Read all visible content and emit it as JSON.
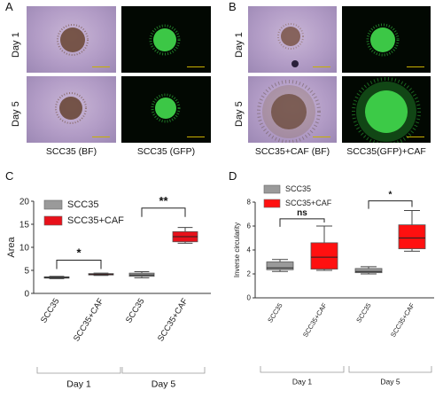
{
  "panelA": {
    "letter": "A",
    "rows": [
      "Day 1",
      "Day 5"
    ],
    "captions": [
      "SCC35 (BF)",
      "SCC35 (GFP)"
    ]
  },
  "panelB": {
    "letter": "B",
    "rows": [
      "Day 1",
      "Day 5"
    ],
    "captions": [
      "SCC35+CAF (BF)",
      "SCC35(GFP)+CAF"
    ]
  },
  "panelC": {
    "letter": "C",
    "chart_data": {
      "type": "box",
      "ylabel": "Area",
      "ylim": [
        0,
        20
      ],
      "yticks": [
        0,
        5,
        10,
        15,
        20
      ],
      "categories": [
        "SCC35",
        "SCC35+CAF",
        "SCC35",
        "SCC35+CAF"
      ],
      "groups": [
        "Day 1",
        "Day 5"
      ],
      "legend": [
        {
          "name": "SCC35",
          "color": "#9a9a9a"
        },
        {
          "name": "SCC35+CAF",
          "color": "#e8101a"
        }
      ],
      "boxes": [
        {
          "min": 3.2,
          "q1": 3.35,
          "median": 3.45,
          "q3": 3.6,
          "max": 3.7,
          "color": "#9a9a9a"
        },
        {
          "min": 3.9,
          "q1": 4.0,
          "median": 4.1,
          "q3": 4.3,
          "max": 4.4,
          "color": "#e8101a"
        },
        {
          "min": 3.4,
          "q1": 3.7,
          "median": 4.0,
          "q3": 4.4,
          "max": 4.7,
          "color": "#9a9a9a"
        },
        {
          "min": 10.9,
          "q1": 11.2,
          "median": 12.3,
          "q3": 13.4,
          "max": 14.3,
          "color": "#e8101a"
        }
      ],
      "significance": [
        {
          "from": 0,
          "to": 1,
          "label": "*",
          "y": 7.2
        },
        {
          "from": 2,
          "to": 3,
          "label": "**",
          "y": 18.5
        }
      ]
    }
  },
  "panelD": {
    "letter": "D",
    "chart_data": {
      "type": "box",
      "ylabel": "Inverse circularity",
      "ylim": [
        0,
        8
      ],
      "yticks": [
        0,
        2,
        4,
        6,
        8
      ],
      "categories": [
        "SCC35",
        "SCC35+CAF",
        "SCC35",
        "SCC35+CAF"
      ],
      "groups": [
        "Day 1",
        "Day 5"
      ],
      "legend": [
        {
          "name": "SCC35",
          "color": "#9a9a9a"
        },
        {
          "name": "SCC35+CAF",
          "color": "#ff1010"
        }
      ],
      "boxes": [
        {
          "min": 2.2,
          "q1": 2.35,
          "median": 2.5,
          "q3": 3.0,
          "max": 3.2,
          "color": "#9a9a9a"
        },
        {
          "min": 2.3,
          "q1": 2.4,
          "median": 3.4,
          "q3": 4.6,
          "max": 6.0,
          "color": "#ff1010"
        },
        {
          "min": 2.0,
          "q1": 2.1,
          "median": 2.2,
          "q3": 2.45,
          "max": 2.6,
          "color": "#9a9a9a"
        },
        {
          "min": 3.9,
          "q1": 4.1,
          "median": 5.0,
          "q3": 6.1,
          "max": 7.3,
          "color": "#ff1010"
        }
      ],
      "significance": [
        {
          "from": 0,
          "to": 1,
          "label": "ns",
          "y": 6.6
        },
        {
          "from": 2,
          "to": 3,
          "label": "*",
          "y": 8.1
        }
      ]
    }
  }
}
